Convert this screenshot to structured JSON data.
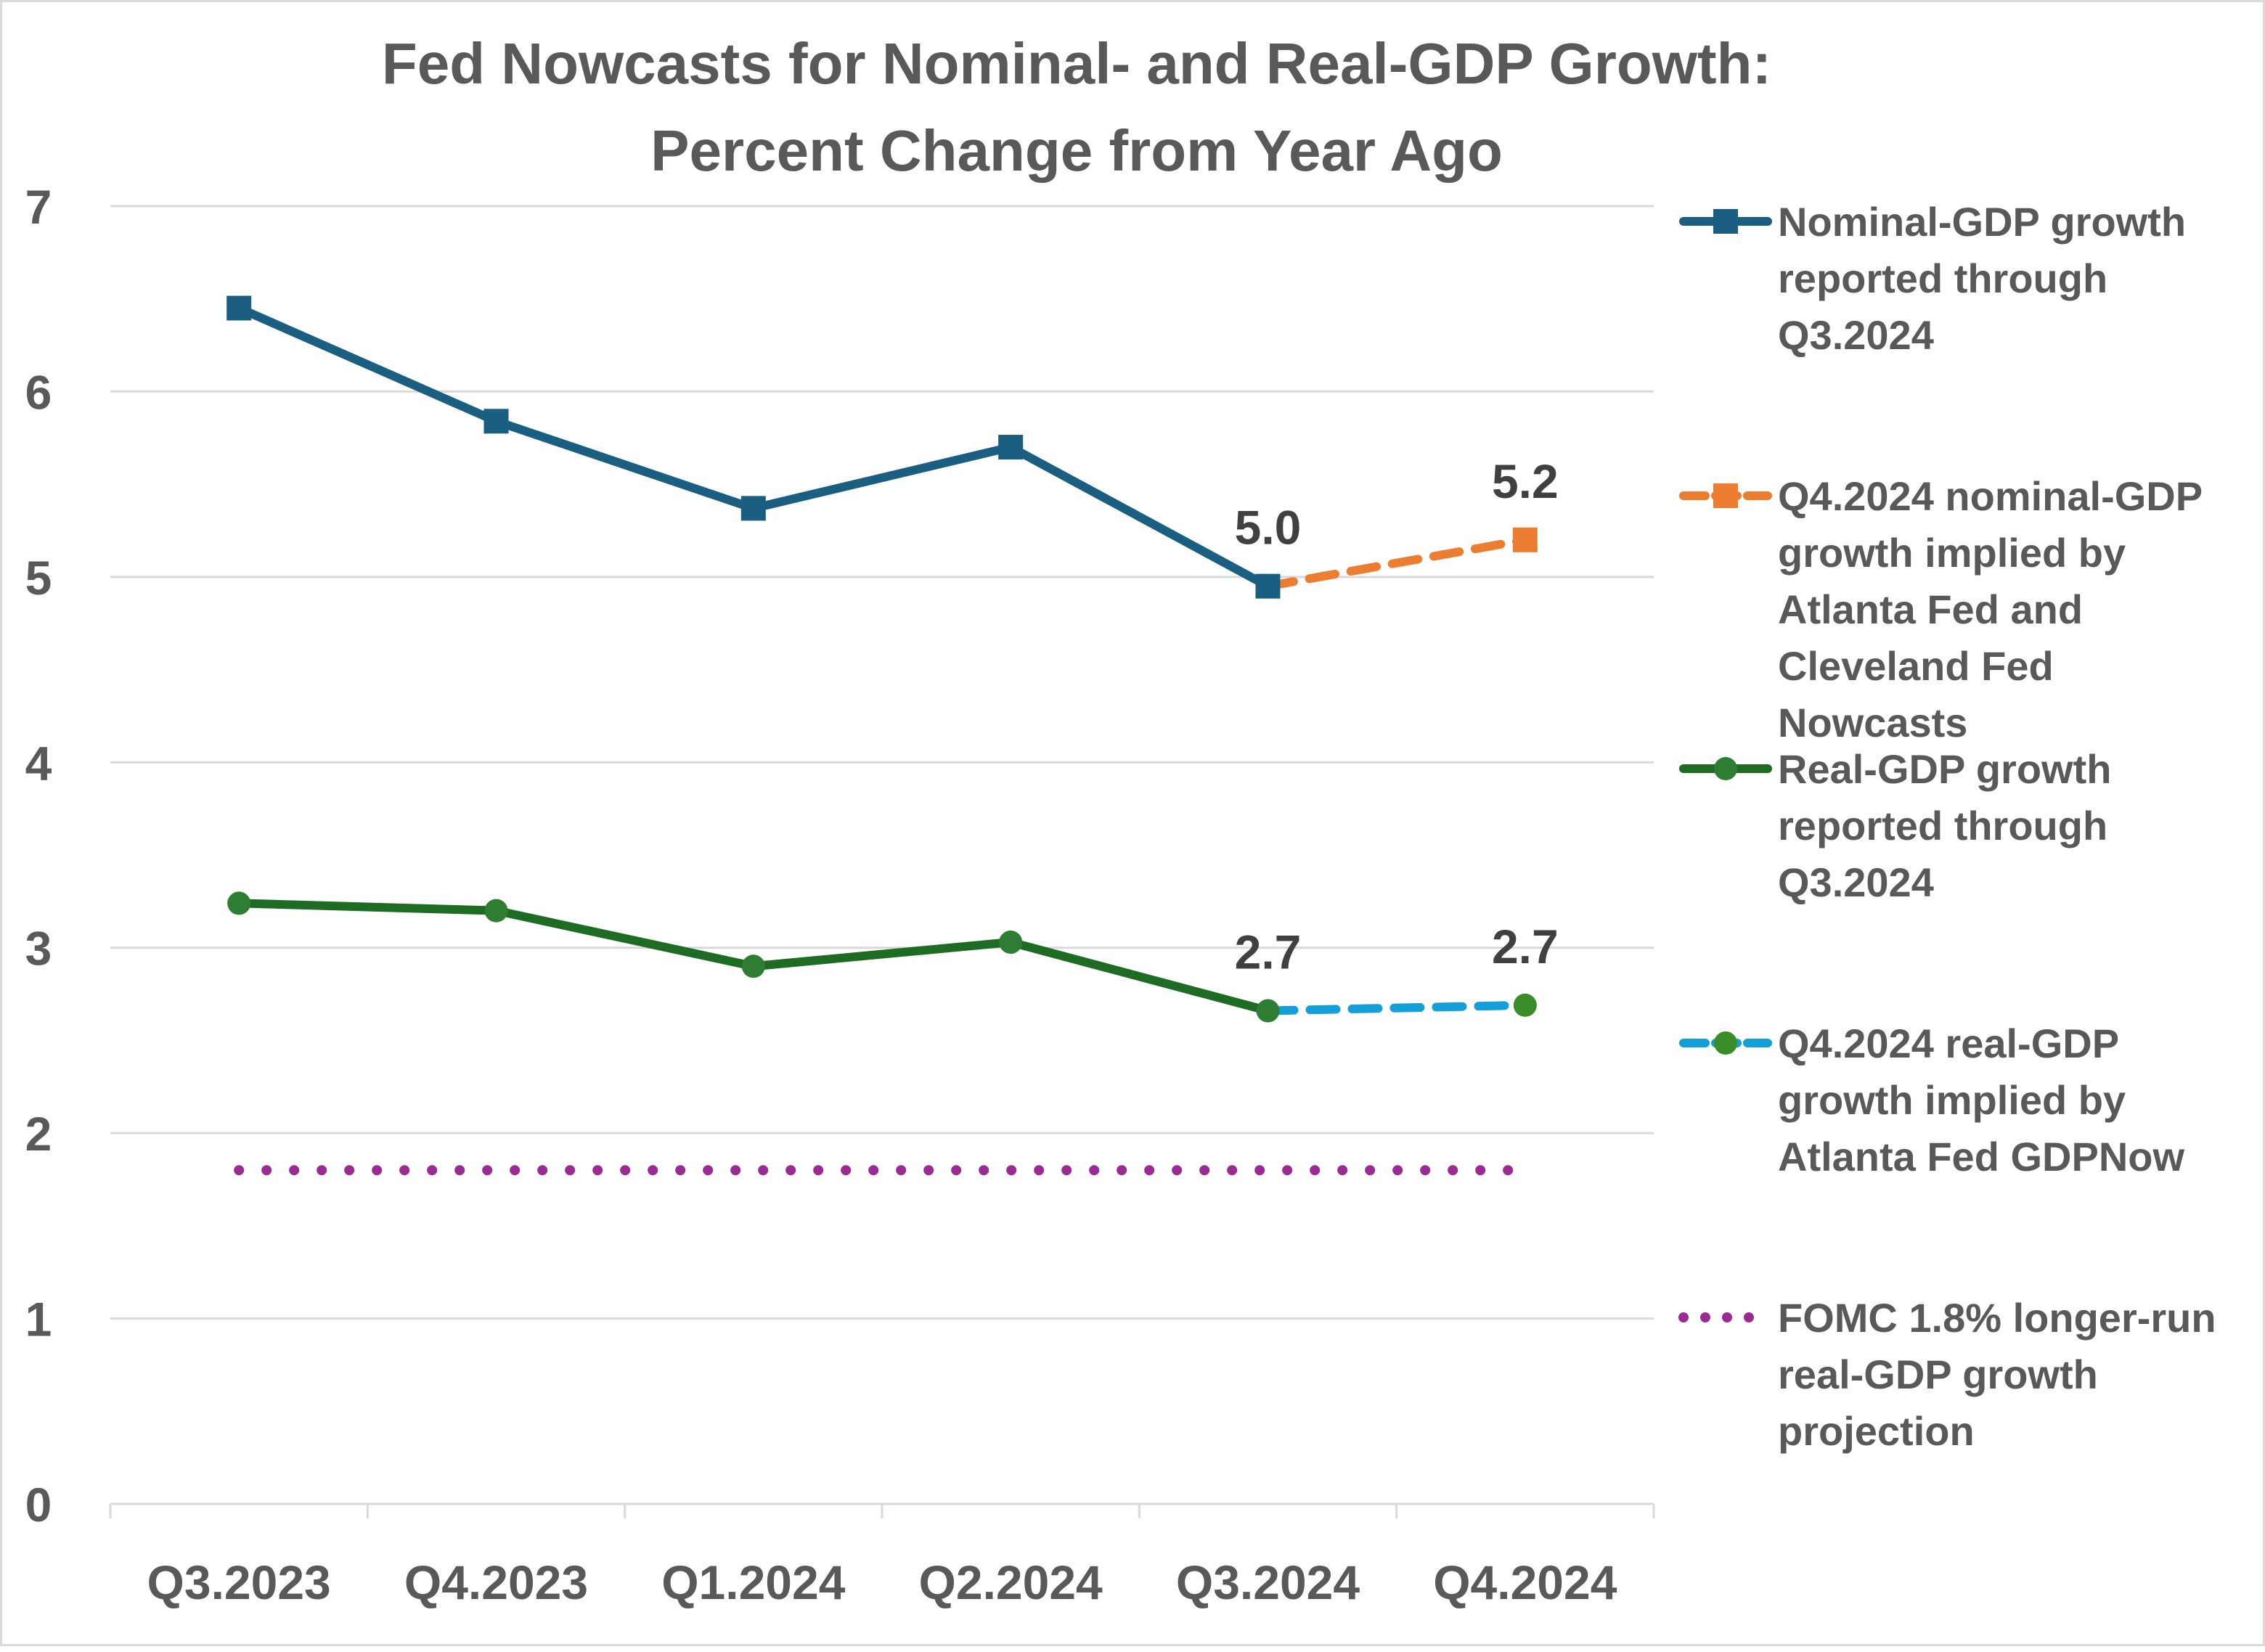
{
  "chart_data": {
    "type": "line",
    "title": "Fed Nowcasts for Nominal- and Real-GDP Growth:",
    "subtitle": "Percent Change from Year Ago",
    "xlabel": "",
    "ylabel": "",
    "categories": [
      "Q3.2023",
      "Q4.2023",
      "Q1.2024",
      "Q2.2024",
      "Q3.2024",
      "Q4.2024"
    ],
    "ylim": [
      0,
      7
    ],
    "yticks": [
      0,
      1,
      2,
      3,
      4,
      5,
      6,
      7
    ],
    "grid": true,
    "legend_position": "right",
    "series": [
      {
        "name": "Nominal-GDP growth reported through Q3.2024",
        "legend_lines": [
          "Nominal-GDP growth",
          "reported through",
          "Q3.2024"
        ],
        "color": "#1a5e82",
        "style": "solid",
        "marker": "square",
        "values": [
          6.45,
          5.84,
          5.37,
          5.7,
          4.95,
          null
        ]
      },
      {
        "name": "Q4.2024 nominal-GDP growth implied by Atlanta Fed and Cleveland Fed Nowcasts",
        "legend_lines": [
          "Q4.2024 nominal-GDP",
          "growth implied by",
          "Atlanta Fed and",
          "Cleveland Fed",
          "Nowcasts"
        ],
        "color": "#ed7d31",
        "style": "dashed",
        "marker": "square",
        "values": [
          null,
          null,
          null,
          null,
          4.95,
          5.2
        ]
      },
      {
        "name": "Real-GDP growth reported through Q3.2024",
        "legend_lines": [
          "Real-GDP growth",
          "reported through",
          "Q3.2024"
        ],
        "color": "#1e6b23",
        "marker_color": "#2e7d32",
        "style": "solid",
        "marker": "circle",
        "values": [
          3.24,
          3.2,
          2.9,
          3.03,
          2.66,
          null
        ]
      },
      {
        "name": "Q4.2024 real-GDP growth implied by Atlanta Fed GDPNow",
        "legend_lines": [
          "Q4.2024 real-GDP",
          "growth implied by",
          "Atlanta Fed GDPNow"
        ],
        "color": "#149fd8",
        "marker_color": "#3a8c28",
        "style": "dashed",
        "marker": "circle",
        "values": [
          null,
          null,
          null,
          null,
          2.66,
          2.69
        ]
      },
      {
        "name": "FOMC 1.8% longer-run real-GDP growth projection",
        "legend_lines": [
          "FOMC 1.8% longer-run",
          "real-GDP growth",
          "projection"
        ],
        "color": "#9b2a94",
        "style": "dotted",
        "marker": "none",
        "values": [
          1.8,
          1.8,
          1.8,
          1.8,
          1.8,
          1.8
        ]
      }
    ],
    "data_labels": [
      {
        "category": "Q3.2024",
        "value": 4.95,
        "text": "5.0"
      },
      {
        "category": "Q4.2024",
        "value": 5.2,
        "text": "5.2"
      },
      {
        "category": "Q3.2024",
        "value": 2.66,
        "text": "2.7"
      },
      {
        "category": "Q4.2024",
        "value": 2.69,
        "text": "2.7"
      }
    ]
  }
}
